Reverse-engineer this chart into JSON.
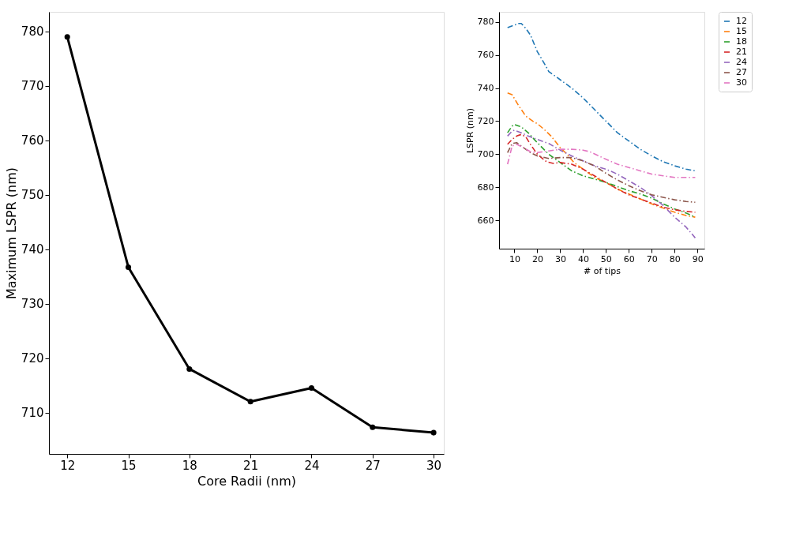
{
  "chart_data": [
    {
      "type": "line",
      "xlabel": "Core Radii (nm)",
      "ylabel": "Maximum LSPR (nm)",
      "x": [
        12,
        15,
        18,
        21,
        24,
        27,
        30
      ],
      "xlim": [
        11.1,
        30.5
      ],
      "xticks": [
        12,
        15,
        18,
        21,
        24,
        27,
        30
      ],
      "ylim": [
        702.4,
        783.6
      ],
      "yticks": [
        710,
        720,
        730,
        740,
        750,
        760,
        770,
        780
      ],
      "marker": "circle",
      "line_style": "solid",
      "grid": false,
      "legend": false,
      "series": [
        {
          "color": "#000000",
          "values": [
            779,
            736.7,
            718,
            712,
            714.5,
            707.3,
            706.3
          ]
        }
      ]
    },
    {
      "type": "line",
      "xlabel": "# of tips",
      "ylabel": "LSPR (nm)",
      "xlim": [
        3.3,
        93
      ],
      "xticks": [
        10,
        20,
        30,
        40,
        50,
        60,
        70,
        80,
        90
      ],
      "ylim": [
        643,
        786
      ],
      "yticks": [
        660,
        680,
        700,
        720,
        740,
        760,
        780
      ],
      "marker": "none",
      "line_style": "dashed",
      "grid": false,
      "legend": "right",
      "series": [
        {
          "name": "12",
          "color": "#1f77b4",
          "x": [
            7,
            10,
            12,
            13,
            15,
            17,
            20,
            23,
            25,
            28,
            30,
            35,
            40,
            45,
            50,
            55,
            60,
            65,
            70,
            75,
            80,
            85,
            89
          ],
          "values": [
            776.5,
            778,
            779,
            779,
            776,
            772,
            762,
            755,
            750,
            747,
            745,
            740,
            734,
            727,
            720,
            713,
            708,
            703,
            699,
            695.5,
            693,
            691,
            690
          ]
        },
        {
          "name": "15",
          "color": "#ff7f0e",
          "x": [
            7,
            9,
            12,
            15,
            18,
            20,
            23,
            26,
            30,
            33,
            36,
            40,
            45,
            50,
            55,
            60,
            65,
            70,
            75,
            80,
            85,
            89
          ],
          "values": [
            737,
            736,
            729,
            723,
            720,
            718.5,
            715,
            711,
            704,
            700,
            695,
            691,
            686,
            683,
            679,
            676,
            673,
            670,
            667.5,
            665,
            663,
            662
          ]
        },
        {
          "name": "18",
          "color": "#2ca02c",
          "x": [
            7,
            9,
            10,
            13,
            16,
            20,
            25,
            30,
            35,
            40,
            45,
            50,
            55,
            60,
            65,
            70,
            75,
            80,
            85,
            89
          ],
          "values": [
            713,
            717,
            718,
            716.5,
            713,
            707,
            700,
            695,
            690,
            687,
            685,
            683,
            680.5,
            678,
            676,
            673.5,
            670,
            667,
            664.5,
            662
          ]
        },
        {
          "name": "21",
          "color": "#d62728",
          "x": [
            7,
            9,
            11,
            13,
            15,
            17,
            20,
            24,
            27,
            30,
            35,
            40,
            45,
            50,
            55,
            60,
            65,
            70,
            75,
            80,
            85,
            89
          ],
          "values": [
            706,
            709,
            711,
            712,
            710.5,
            706,
            700,
            695.5,
            694.5,
            695,
            694,
            691,
            687,
            683,
            679,
            675.5,
            673,
            670.5,
            668,
            666.5,
            665.5,
            665
          ]
        },
        {
          "name": "24",
          "color": "#9467bd",
          "x": [
            7,
            9,
            10,
            13,
            16,
            20,
            25,
            30,
            35,
            40,
            45,
            50,
            55,
            60,
            65,
            70,
            75,
            80,
            85,
            89
          ],
          "values": [
            711,
            714,
            714.5,
            713,
            711,
            709,
            706.5,
            702.5,
            699,
            696,
            693,
            691,
            688,
            684,
            680,
            675,
            669,
            662,
            656,
            649.5
          ]
        },
        {
          "name": "27",
          "color": "#8c564b",
          "x": [
            7,
            9,
            11,
            14,
            17,
            20,
            25,
            30,
            35,
            40,
            45,
            50,
            55,
            60,
            65,
            70,
            75,
            80,
            85,
            89
          ],
          "values": [
            701,
            706.5,
            707,
            704,
            701,
            699,
            697.5,
            698,
            698,
            696,
            693,
            688.5,
            684.5,
            681,
            678,
            675.5,
            674,
            672.5,
            671.5,
            671
          ]
        },
        {
          "name": "30",
          "color": "#e377c2",
          "x": [
            7,
            9,
            11,
            14,
            17,
            20,
            25,
            30,
            35,
            40,
            43,
            50,
            55,
            60,
            65,
            70,
            75,
            80,
            85,
            89
          ],
          "values": [
            694,
            705,
            706,
            704,
            701.5,
            701,
            702,
            703,
            703,
            702.5,
            701.5,
            697,
            694,
            692,
            690,
            688,
            687,
            686,
            686,
            686
          ]
        }
      ]
    }
  ]
}
